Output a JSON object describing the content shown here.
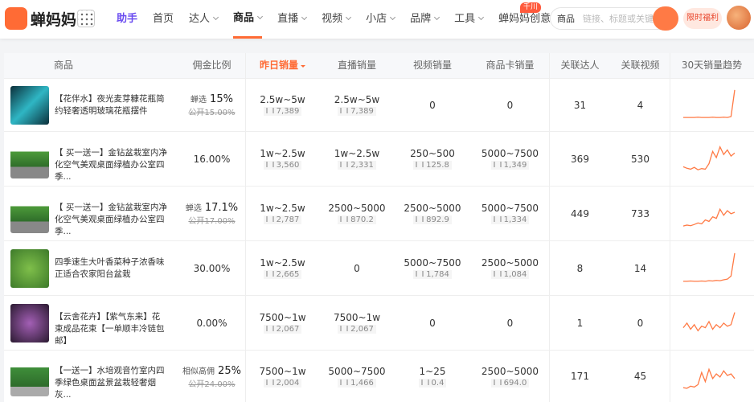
{
  "header": {
    "logo": "蝉妈妈",
    "assistant": "助手",
    "nav": [
      "首页",
      "达人",
      "商品",
      "直播",
      "视频",
      "小店",
      "品牌",
      "工具"
    ],
    "creative": "蝉妈妈创意",
    "badge": "千川",
    "search_scope": "商品",
    "search_placeholder": "链接、标题或关键词",
    "promo": "限时福利"
  },
  "table": {
    "columns": [
      "商品",
      "佣金比例",
      "昨日销量",
      "直播销量",
      "视频销量",
      "商品卡销量",
      "关联达人",
      "关联视频",
      "30天销量趋势"
    ],
    "rows": [
      {
        "title": "【花伴水】夜光麦芽糠花瓶简约轻奢透明玻璃花瓶摆件",
        "commission": {
          "tag": "蝉选",
          "value": "15%",
          "public": "公开15.00%"
        },
        "yesterday": {
          "range": "2.5w~5w",
          "count": "7,389"
        },
        "live": {
          "range": "2.5w~5w",
          "count": "7,389"
        },
        "video": "0",
        "card": "0",
        "creators": "31",
        "videos": "4",
        "trend": [
          5,
          5,
          5,
          5,
          6,
          5,
          5,
          5,
          6,
          5,
          5,
          6,
          5,
          8,
          95
        ]
      },
      {
        "title": "【 买一送一】金钻盆栽室内净化空气美观桌面绿植办公室四季...",
        "commission": "16.00%",
        "yesterday": {
          "range": "1w~2.5w",
          "count": "3,560"
        },
        "live": {
          "range": "1w~2.5w",
          "count": "2,331"
        },
        "video": {
          "range": "250~500",
          "count": "125.8"
        },
        "card": {
          "range": "5000~7500",
          "count": "1,349"
        },
        "creators": "369",
        "videos": "530",
        "trend": [
          20,
          15,
          12,
          18,
          10,
          14,
          12,
          30,
          70,
          50,
          85,
          60,
          75,
          55,
          65
        ]
      },
      {
        "title": "【 买一送一】金钻盆栽室内净化空气美观桌面绿植办公室四季...",
        "commission": {
          "tag": "蝉选",
          "value": "17.1%",
          "public": "公开17.00%"
        },
        "yesterday": {
          "range": "1w~2.5w",
          "count": "2,787"
        },
        "live": {
          "range": "2500~5000",
          "count": "870.2"
        },
        "video": {
          "range": "2500~5000",
          "count": "892.9"
        },
        "card": {
          "range": "5000~7500",
          "count": "1,334"
        },
        "creators": "449",
        "videos": "733",
        "trend": [
          5,
          8,
          6,
          10,
          15,
          12,
          25,
          20,
          35,
          30,
          60,
          40,
          55,
          45,
          50
        ]
      },
      {
        "title": "四季速生大叶香菜种子浓香味正适合农家阳台盆栽",
        "commission": "30.00%",
        "yesterday": {
          "range": "1w~2.5w",
          "count": "2,665"
        },
        "live": "0",
        "video": {
          "range": "5000~7500",
          "count": "1,784"
        },
        "card": {
          "range": "2500~5000",
          "count": "1,084"
        },
        "creators": "8",
        "videos": "14",
        "trend": [
          3,
          3,
          4,
          3,
          3,
          4,
          3,
          5,
          4,
          6,
          5,
          8,
          10,
          20,
          95
        ]
      },
      {
        "title": "【云舍花卉】【紫气东来】花束成品花束【一单顺丰冷链包邮】",
        "commission": "0.00%",
        "yesterday": {
          "range": "7500~1w",
          "count": "2,067"
        },
        "live": {
          "range": "7500~1w",
          "count": "2,067"
        },
        "video": "0",
        "card": "0",
        "creators": "1",
        "videos": "0",
        "trend": [
          30,
          45,
          25,
          40,
          20,
          35,
          30,
          50,
          25,
          40,
          30,
          45,
          35,
          40,
          80
        ]
      },
      {
        "title": "【一送一】水培观音竹室内四季绿色桌面盆景盆栽轻奢烟灰...",
        "commission": {
          "tag": "相似高佣",
          "value": "25%",
          "public": "公开24.00%"
        },
        "yesterday": {
          "range": "7500~1w",
          "count": "2,004"
        },
        "live": {
          "range": "5000~7500",
          "count": "1,466"
        },
        "video": {
          "range": "1~25",
          "count": "0.4"
        },
        "card": {
          "range": "2500~5000",
          "count": "694.0"
        },
        "creators": "171",
        "videos": "45",
        "trend": [
          10,
          8,
          15,
          12,
          20,
          60,
          30,
          70,
          40,
          55,
          45,
          65,
          50,
          55,
          40
        ]
      }
    ]
  }
}
